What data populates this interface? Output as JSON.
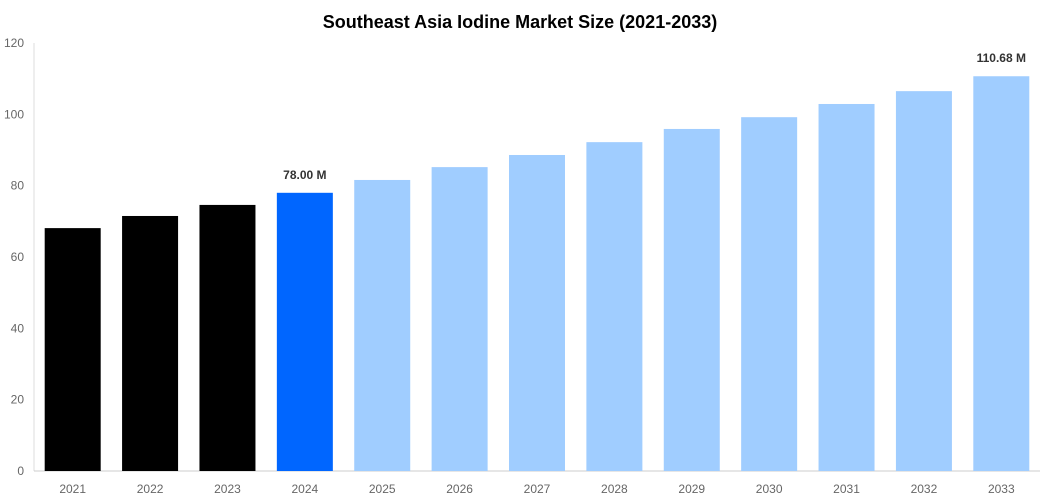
{
  "chart_data": {
    "type": "bar",
    "title": "Southeast Asia Iodine Market Size (2021-2033)",
    "xlabel": "",
    "ylabel": "",
    "ylim": [
      0,
      120
    ],
    "yticks": [
      0,
      20,
      40,
      60,
      80,
      100,
      120
    ],
    "grid": false,
    "categories": [
      "2021",
      "2022",
      "2023",
      "2024",
      "2025",
      "2026",
      "2027",
      "2028",
      "2029",
      "2030",
      "2031",
      "2032",
      "2033"
    ],
    "values": [
      68.1,
      71.5,
      74.6,
      78.0,
      81.6,
      85.2,
      88.6,
      92.2,
      95.9,
      99.2,
      102.9,
      106.5,
      110.68
    ],
    "bar_colors": [
      "#000000",
      "#000000",
      "#000000",
      "#0066ff",
      "#a0cdff",
      "#a0cdff",
      "#a0cdff",
      "#a0cdff",
      "#a0cdff",
      "#a0cdff",
      "#a0cdff",
      "#a0cdff",
      "#a0cdff"
    ],
    "data_labels": [
      {
        "category": "2024",
        "text": "78.00 M"
      },
      {
        "category": "2033",
        "text": "110.68 M"
      }
    ]
  }
}
